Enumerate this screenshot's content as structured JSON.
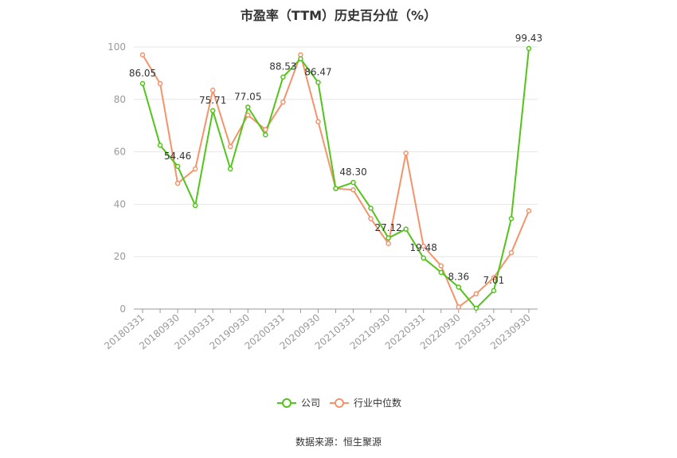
{
  "chart_data": {
    "type": "line",
    "title": "市盈率（TTM）历史百分位（%）",
    "xlabel": "",
    "ylabel": "",
    "ylim": [
      0,
      100
    ],
    "yticks": [
      0,
      20,
      40,
      60,
      80,
      100
    ],
    "grid": true,
    "legend_position": "bottom",
    "x": [
      "20180331",
      "20180630",
      "20180930",
      "20181231",
      "20190331",
      "20190630",
      "20190930",
      "20191231",
      "20200331",
      "20200630",
      "20200930",
      "20201231",
      "20210331",
      "20210630",
      "20210930",
      "20211231",
      "20220331",
      "20220630",
      "20220930",
      "20221231",
      "20230331",
      "20230630",
      "20230930"
    ],
    "x_tick_labels": [
      "20180331",
      "20180930",
      "20190331",
      "20190930",
      "20200331",
      "20200930",
      "20210331",
      "20210930",
      "20220331",
      "20220930",
      "20230331",
      "20230930"
    ],
    "series": [
      {
        "name": "公司",
        "color": "#52c41a",
        "values": [
          86.05,
          62.5,
          54.46,
          39.5,
          75.71,
          53.5,
          77.05,
          66.5,
          88.53,
          95.5,
          86.47,
          46.0,
          48.3,
          38.5,
          27.12,
          30.5,
          19.48,
          14.0,
          8.36,
          0.3,
          7.01,
          34.5,
          99.43
        ],
        "labels": [
          "86.05",
          "",
          "54.46",
          "",
          "75.71",
          "",
          "77.05",
          "",
          "88.53",
          "",
          "86.47",
          "",
          "48.30",
          "",
          "27.12",
          "",
          "19.48",
          "",
          "8.36",
          "",
          "7.01",
          "",
          "99.43"
        ]
      },
      {
        "name": "行业中位数",
        "color": "#f5936b",
        "values": [
          97.0,
          86.0,
          48.0,
          53.5,
          83.5,
          62.0,
          74.0,
          68.5,
          79.0,
          97.0,
          71.5,
          46.0,
          45.5,
          34.5,
          25.0,
          59.5,
          24.0,
          16.5,
          0.8,
          5.8,
          12.0,
          21.5,
          37.5
        ]
      }
    ],
    "source": "数据来源：恒生聚源"
  }
}
